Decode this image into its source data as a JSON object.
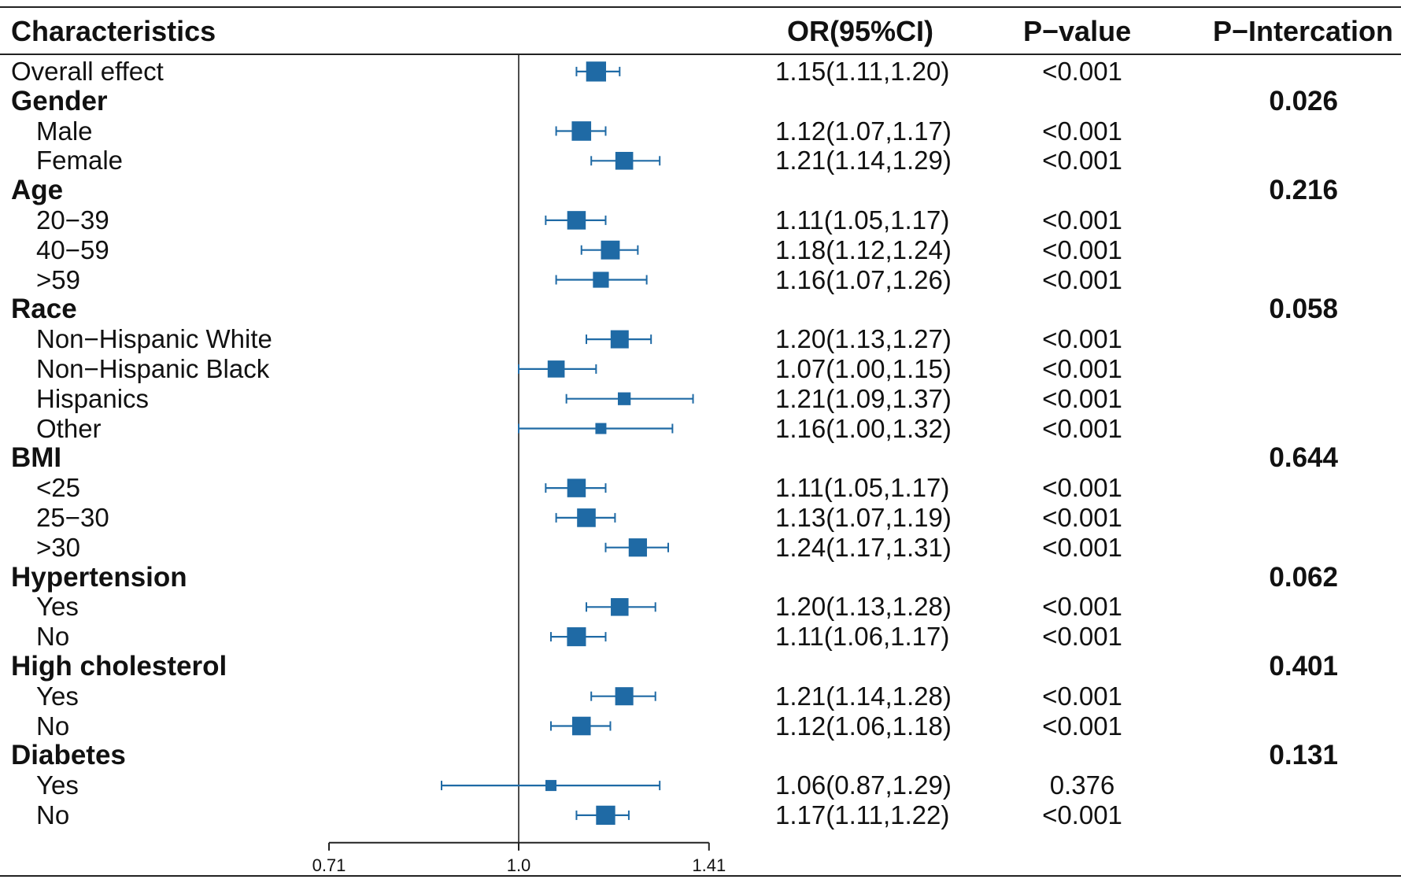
{
  "header": {
    "characteristics": "Characteristics",
    "or": "OR(95%CI)",
    "pvalue": "P−value",
    "pinteraction": "P−Intercation"
  },
  "colors": {
    "marker": "#1f6aa5",
    "axis": "#222222"
  },
  "chart_data": {
    "type": "forest",
    "title": "",
    "x_scale": "log",
    "reference_line": 1.0,
    "xlim": [
      0.71,
      1.41
    ],
    "ticks": [
      {
        "value": 0.71,
        "label": "0.71"
      },
      {
        "value": 1.0,
        "label": "1.0"
      },
      {
        "value": 1.41,
        "label": "1.41"
      }
    ],
    "rows": [
      {
        "label": "Overall effect",
        "kind": "overall",
        "or": 1.15,
        "lo": 1.11,
        "hi": 1.2,
        "or_text": "1.15(1.11,1.20)",
        "p": "<0.001",
        "p_int": ""
      },
      {
        "label": "Gender",
        "kind": "group",
        "p_int": "0.026"
      },
      {
        "label": "Male",
        "kind": "sub",
        "or": 1.12,
        "lo": 1.07,
        "hi": 1.17,
        "or_text": "1.12(1.07,1.17)",
        "p": "<0.001",
        "p_int": ""
      },
      {
        "label": "Female",
        "kind": "sub",
        "or": 1.21,
        "lo": 1.14,
        "hi": 1.29,
        "or_text": "1.21(1.14,1.29)",
        "p": "<0.001",
        "p_int": ""
      },
      {
        "label": "Age",
        "kind": "group",
        "p_int": "0.216"
      },
      {
        "label": "20−39",
        "kind": "sub",
        "or": 1.11,
        "lo": 1.05,
        "hi": 1.17,
        "or_text": "1.11(1.05,1.17)",
        "p": "<0.001",
        "p_int": ""
      },
      {
        "label": "40−59",
        "kind": "sub",
        "or": 1.18,
        "lo": 1.12,
        "hi": 1.24,
        "or_text": "1.18(1.12,1.24)",
        "p": "<0.001",
        "p_int": ""
      },
      {
        "label": ">59",
        "kind": "sub",
        "or": 1.16,
        "lo": 1.07,
        "hi": 1.26,
        "or_text": "1.16(1.07,1.26)",
        "p": "<0.001",
        "p_int": ""
      },
      {
        "label": "Race",
        "kind": "group",
        "p_int": "0.058"
      },
      {
        "label": "Non−Hispanic White",
        "kind": "sub",
        "or": 1.2,
        "lo": 1.13,
        "hi": 1.27,
        "or_text": "1.20(1.13,1.27)",
        "p": "<0.001",
        "p_int": ""
      },
      {
        "label": "Non−Hispanic Black",
        "kind": "sub",
        "or": 1.07,
        "lo": 1.0,
        "hi": 1.15,
        "or_text": "1.07(1.00,1.15)",
        "p": "<0.001",
        "p_int": ""
      },
      {
        "label": "Hispanics",
        "kind": "sub",
        "or": 1.21,
        "lo": 1.09,
        "hi": 1.37,
        "or_text": "1.21(1.09,1.37)",
        "p": "<0.001",
        "p_int": ""
      },
      {
        "label": "Other",
        "kind": "sub",
        "or": 1.16,
        "lo": 1.0,
        "hi": 1.32,
        "or_text": "1.16(1.00,1.32)",
        "p": "<0.001",
        "p_int": ""
      },
      {
        "label": "BMI",
        "kind": "group",
        "p_int": "0.644"
      },
      {
        "label": "<25",
        "kind": "sub",
        "or": 1.11,
        "lo": 1.05,
        "hi": 1.17,
        "or_text": "1.11(1.05,1.17)",
        "p": "<0.001",
        "p_int": ""
      },
      {
        "label": "25−30",
        "kind": "sub",
        "or": 1.13,
        "lo": 1.07,
        "hi": 1.19,
        "or_text": "1.13(1.07,1.19)",
        "p": "<0.001",
        "p_int": ""
      },
      {
        "label": ">30",
        "kind": "sub",
        "or": 1.24,
        "lo": 1.17,
        "hi": 1.31,
        "or_text": "1.24(1.17,1.31)",
        "p": "<0.001",
        "p_int": ""
      },
      {
        "label": "Hypertension",
        "kind": "group",
        "p_int": "0.062"
      },
      {
        "label": "Yes",
        "kind": "sub",
        "or": 1.2,
        "lo": 1.13,
        "hi": 1.28,
        "or_text": "1.20(1.13,1.28)",
        "p": "<0.001",
        "p_int": ""
      },
      {
        "label": "No",
        "kind": "sub",
        "or": 1.11,
        "lo": 1.06,
        "hi": 1.17,
        "or_text": "1.11(1.06,1.17)",
        "p": "<0.001",
        "p_int": ""
      },
      {
        "label": "High cholesterol",
        "kind": "group",
        "p_int": "0.401"
      },
      {
        "label": "Yes",
        "kind": "sub",
        "or": 1.21,
        "lo": 1.14,
        "hi": 1.28,
        "or_text": "1.21(1.14,1.28)",
        "p": "<0.001",
        "p_int": ""
      },
      {
        "label": "No",
        "kind": "sub",
        "or": 1.12,
        "lo": 1.06,
        "hi": 1.18,
        "or_text": "1.12(1.06,1.18)",
        "p": "<0.001",
        "p_int": ""
      },
      {
        "label": "Diabetes",
        "kind": "group",
        "p_int": "0.131"
      },
      {
        "label": "Yes",
        "kind": "sub",
        "or": 1.06,
        "lo": 0.87,
        "hi": 1.29,
        "or_text": "1.06(0.87,1.29)",
        "p": "0.376",
        "p_int": ""
      },
      {
        "label": "No",
        "kind": "sub",
        "or": 1.17,
        "lo": 1.11,
        "hi": 1.22,
        "or_text": "1.17(1.11,1.22)",
        "p": "<0.001",
        "p_int": ""
      }
    ]
  }
}
